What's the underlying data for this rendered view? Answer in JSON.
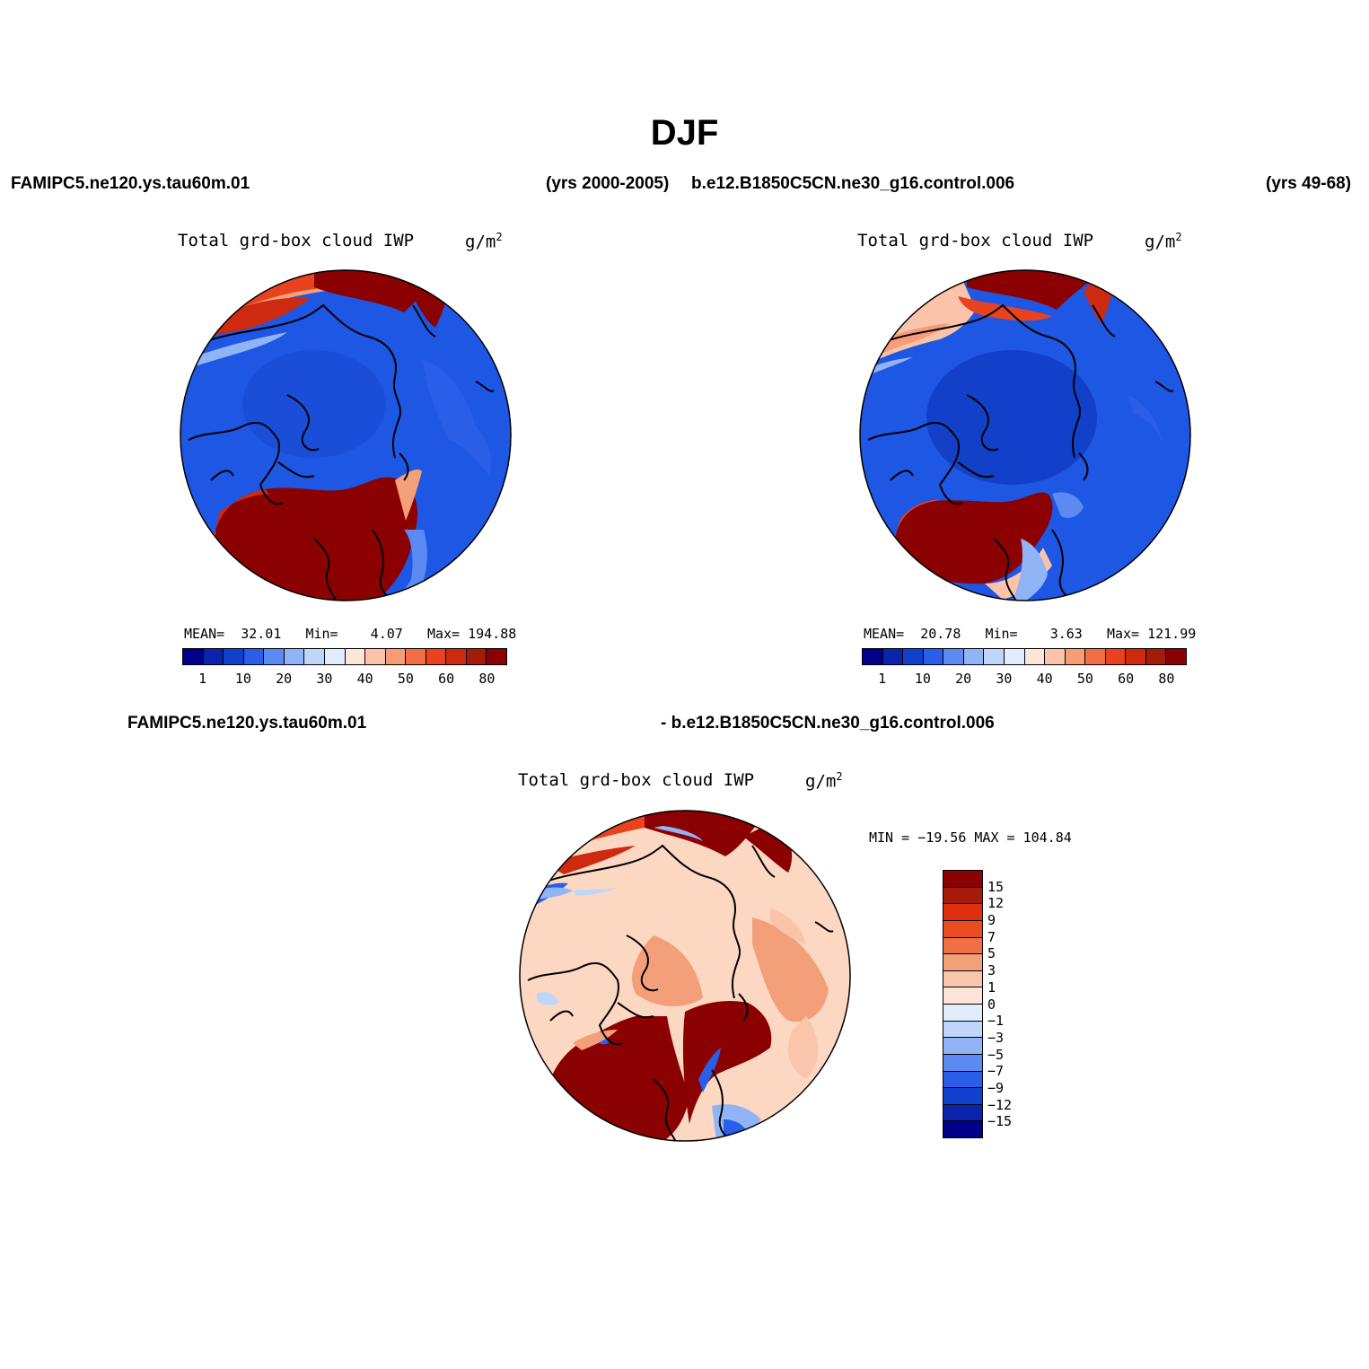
{
  "title": "DJF",
  "header": {
    "case1": "FAMIPC5.ne120.ys.tau60m.01",
    "case1_years": "(yrs 2000-2005)",
    "case2": "b.e12.B1850C5CN.ne30_g16.control.006",
    "case2_years": "(yrs 49-68)",
    "diff_left": "FAMIPC5.ne120.ys.tau60m.01",
    "diff_right": "- b.e12.B1850C5CN.ne30_g16.control.006"
  },
  "panels": [
    {
      "name": "Total grd-box cloud IWP",
      "unit_base": "g/m",
      "unit_exp": "2",
      "stats": {
        "mean_label": "MEAN=",
        "mean": "32.01",
        "min_label": "Min=",
        "min": "4.07",
        "max_label": "Max=",
        "max": "194.88"
      }
    },
    {
      "name": "Total grd-box cloud IWP",
      "unit_base": "g/m",
      "unit_exp": "2",
      "stats": {
        "mean_label": "MEAN=",
        "mean": "20.78",
        "min_label": "Min=",
        "min": "3.63",
        "max_label": "Max=",
        "max": "121.99"
      }
    },
    {
      "name": "Total grd-box cloud IWP",
      "unit_base": "g/m",
      "unit_exp": "2",
      "stats_line": "MIN = −19.56 MAX = 104.84"
    }
  ],
  "colorbar_abs": {
    "colors": [
      "#00008b",
      "#0a23ad",
      "#1140cc",
      "#2a5ee8",
      "#5b8af2",
      "#91b4f7",
      "#c0d5fa",
      "#e1ecfc",
      "#fde6d8",
      "#fbc4aa",
      "#f79c77",
      "#f26e45",
      "#e8421f",
      "#cd2a10",
      "#a51a08",
      "#8b0000"
    ],
    "labels": [
      "1",
      "10",
      "20",
      "30",
      "40",
      "50",
      "60",
      "80"
    ]
  },
  "colorbar_diff": {
    "colors": [
      "#8b0000",
      "#a51a08",
      "#e0300d",
      "#ea4d22",
      "#f07046",
      "#f3a07a",
      "#f9c6ab",
      "#fde6d8",
      "#e1ecfc",
      "#c0d5fa",
      "#91b4f7",
      "#5b8af2",
      "#2a5ee8",
      "#1140cc",
      "#0a23ad",
      "#00008b"
    ],
    "labels": [
      "15",
      "12",
      "9",
      "7",
      "5",
      "3",
      "1",
      "0",
      "−1",
      "−3",
      "−5",
      "−7",
      "−9",
      "−12",
      "−15"
    ]
  },
  "colors": {
    "deep_blue": "#1e57e4",
    "dark_blue": "#1340c8",
    "deep_red": "#8b0000",
    "light_salmon": "#fcd8c2"
  }
}
